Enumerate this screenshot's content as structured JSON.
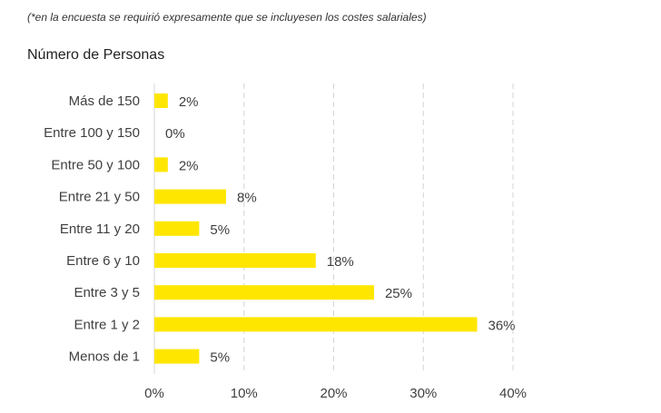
{
  "note": "(*en la encuesta se requirió expresamente que se incluyesen los costes salariales)",
  "chart_data": {
    "type": "bar",
    "orientation": "horizontal",
    "title": "Número de Personas",
    "categories": [
      "Más de 150",
      "Entre 100 y 150",
      "Entre 50 y 100",
      "Entre 21 y 50",
      "Entre 11 y 20",
      "Entre 6 y 10",
      "Entre 3 y 5",
      "Entre 1 y 2",
      "Menos de 1"
    ],
    "values": [
      1.5,
      0,
      1.5,
      8,
      5,
      18,
      24.5,
      36,
      5
    ],
    "data_labels": [
      "2%",
      "0%",
      "2%",
      "8%",
      "5%",
      "18%",
      "25%",
      "36%",
      "5%"
    ],
    "xlim": [
      0,
      40
    ],
    "x_ticks": [
      0,
      10,
      20,
      30,
      40
    ],
    "x_tick_labels": [
      "0%",
      "10%",
      "20%",
      "30%",
      "40%"
    ],
    "grid": "vertical-dashed",
    "bar_color": "#FFE600"
  }
}
